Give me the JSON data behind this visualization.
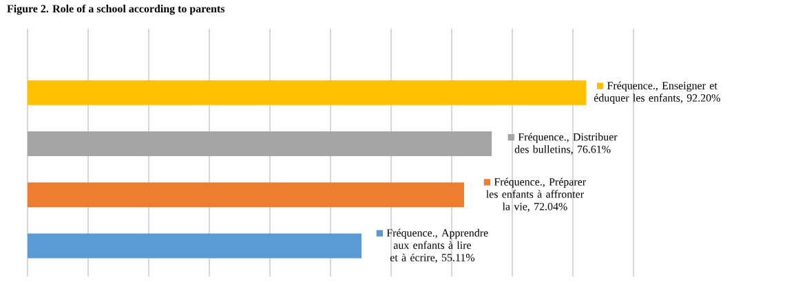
{
  "chart_data": {
    "type": "bar",
    "orientation": "horizontal",
    "title": "Figure 2. Role of a school according to parents",
    "categories": [
      null,
      null,
      null,
      null
    ],
    "values": [
      92.2,
      76.61,
      72.04,
      55.11
    ],
    "colors": [
      "#ffc000",
      "#a5a5a5",
      "#ed7d31",
      "#5b9bd5"
    ],
    "value_labels": [
      "Fréquence., Enseigner et éduquer les enfants, 92.20%",
      "Fréquence., Distribuer des bulletins, 76.61%",
      "Fréquence., Préparer les enfants à affronter la vie, 72.04%",
      "Fréquence., Apprendre aux enfants à lire et à écrire, 55.11%"
    ],
    "xlim": [
      0,
      100
    ],
    "xticks": [
      {
        "value": 0,
        "label": null
      },
      {
        "value": 10,
        "label": null
      },
      {
        "value": 20,
        "label": null
      },
      {
        "value": 30,
        "label": null
      },
      {
        "value": 40,
        "label": null
      },
      {
        "value": 50,
        "label": null
      },
      {
        "value": 60,
        "label": null
      },
      {
        "value": 70,
        "label": null
      },
      {
        "value": 80,
        "label": null
      },
      {
        "value": 90,
        "label": null
      },
      {
        "value": 100,
        "label": null
      }
    ],
    "tick_labels": false,
    "grid": "x"
  }
}
